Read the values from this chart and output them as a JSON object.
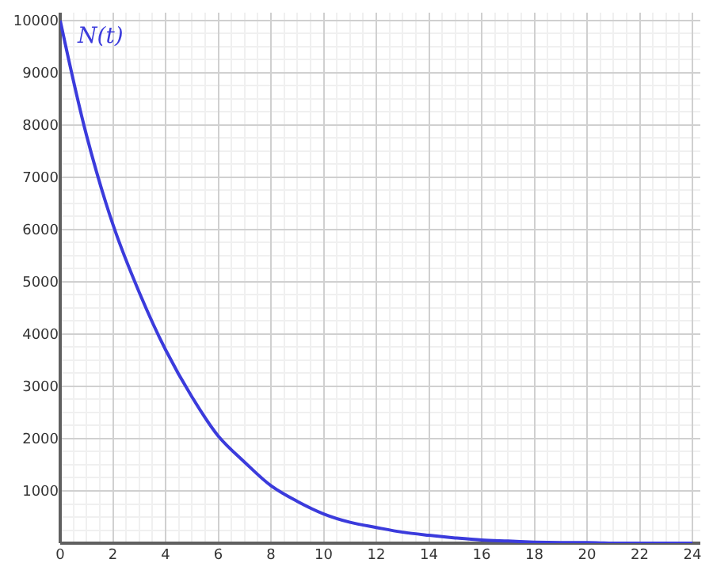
{
  "chart_data": {
    "type": "line",
    "x": [
      0,
      1,
      2,
      3,
      4,
      5,
      6,
      7,
      8,
      9,
      10,
      11,
      12,
      13,
      14,
      15,
      16,
      17,
      18,
      19,
      20,
      21,
      22,
      23,
      24
    ],
    "series": [
      {
        "color": "#3b3bdc",
        "values": [
          10000,
          7800,
          6100,
          4800,
          3700,
          2800,
          2050,
          1550,
          1100,
          800,
          560,
          400,
          300,
          210,
          150,
          100,
          60,
          40,
          20,
          10,
          10,
          0,
          0,
          0,
          0
        ]
      }
    ],
    "annotations": [
      "N(t)"
    ],
    "xlim": [
      0,
      24.3
    ],
    "ylim": [
      0,
      10150
    ],
    "xticks": [
      0,
      2,
      4,
      6,
      8,
      10,
      12,
      14,
      16,
      18,
      20,
      22,
      24
    ],
    "yticks": [
      1000,
      2000,
      3000,
      4000,
      5000,
      6000,
      7000,
      8000,
      9000,
      10000
    ],
    "grid": true,
    "marker": "none",
    "line_style": "solid"
  }
}
